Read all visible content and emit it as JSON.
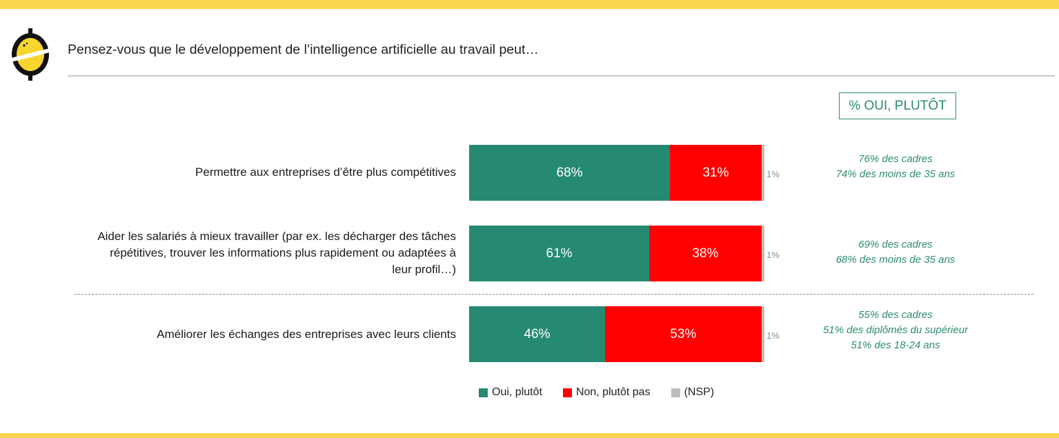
{
  "title": "Pensez-vous que le développement de l’intelligence artificielle au travail peut…",
  "highlight_box": "% OUI, PLUTÔT",
  "colors": {
    "yes": "#268a72",
    "no": "#fe0000",
    "nsp": "#bdbdbd",
    "accent": "#2d8a73",
    "band": "#f8d54c"
  },
  "chart_data": {
    "type": "bar",
    "orientation": "horizontal",
    "stacked": true,
    "normalized": true,
    "categories": [
      "Permettre aux entreprises d’être plus compétitives",
      "Aider les salariés à mieux travailler (par ex. les décharger des tâches répétitives, trouver les informations plus rapidement ou adaptées à leur profil…)",
      "Améliorer les échanges des entreprises avec leurs clients"
    ],
    "series": [
      {
        "name": "Oui, plutôt",
        "values": [
          68,
          61,
          46
        ],
        "color": "#268a72"
      },
      {
        "name": "Non, plutôt pas",
        "values": [
          31,
          38,
          53
        ],
        "color": "#fe0000"
      },
      {
        "name": "(NSP)",
        "values": [
          1,
          1,
          1
        ],
        "color": "#bdbdbd"
      }
    ],
    "data_labels": [
      [
        "68%",
        "31%",
        "1%"
      ],
      [
        "61%",
        "38%",
        "1%"
      ],
      [
        "46%",
        "53%",
        "1%"
      ]
    ],
    "xlim": [
      0,
      100
    ],
    "legend": "bottom",
    "grid": false
  },
  "notes": [
    [
      "76% des cadres",
      "74% des moins de 35 ans"
    ],
    [
      "69% des cadres",
      "68% des moins de 35 ans"
    ],
    [
      "55% des cadres",
      "51% des diplômés du supérieur",
      "51% des 18-24 ans"
    ]
  ]
}
